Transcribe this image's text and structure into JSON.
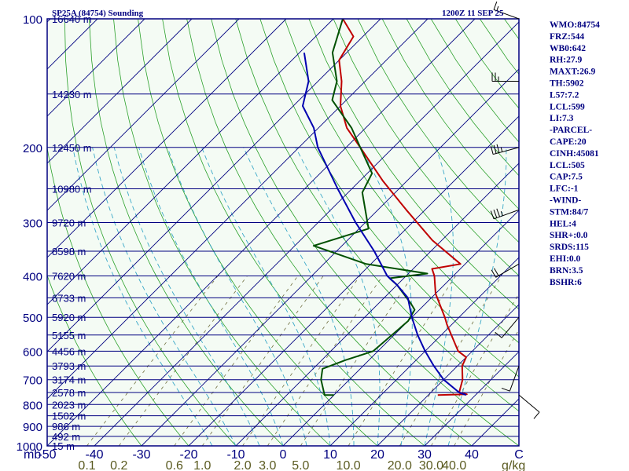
{
  "header": {
    "station": "SP25A (84754) Sounding",
    "time": "1200Z 11 SEP 25"
  },
  "indices": [
    "WMO:84754",
    "FRZ:544",
    "WB0:642",
    "RH:27.9",
    "MAXT:26.9",
    "TH:5902",
    "L57:7.2",
    "LCL:599",
    "LI:7.3",
    "-PARCEL-",
    "CAPE:20",
    "CINH:45081",
    "LCL:505",
    "CAP:7.5",
    "LFC:-1",
    "-WIND-",
    "STM:84/7",
    "HEL:4",
    "SHR+:0.0",
    "SRDS:115",
    "EHI:0.0",
    "BRN:3.5",
    "BSHR:6"
  ],
  "colors": {
    "background": "#f4fbf4",
    "frame": "#000080",
    "isobar": "#000080",
    "isotherm": "#000080",
    "dry_adiabat": "#2aa02a",
    "moist_adiabat": "#3aa8c8",
    "mixing_ratio": "#707040",
    "temperature": "#c00000",
    "dewpoint": "#005000",
    "parcel": "#0000b0",
    "wind": "#000000",
    "label_text": "#000080",
    "axis_text": "#5a5a20"
  },
  "chart_data": {
    "type": "skew-t",
    "yscale": "log",
    "ylim": [
      1000,
      100
    ],
    "xlim": [
      -50,
      50
    ],
    "pressure_ticks": [
      "100",
      "200",
      "300",
      "400",
      "500",
      "600",
      "700",
      "800",
      "900",
      "1000"
    ],
    "temperature_ticks": [
      "-50",
      "-40",
      "-30",
      "-20",
      "-10",
      "0",
      "10",
      "20",
      "30",
      "40",
      "C"
    ],
    "mb_label": "mb",
    "mixing_ratio_ticks": [
      "0.1",
      "0.2",
      "0.6",
      "1.0",
      "2.0",
      "3.0",
      "5.0",
      "10.0",
      "20.0",
      "30.0",
      "40.0"
    ],
    "mixing_ratio_unit": "g/kg",
    "heights": [
      {
        "p": 100,
        "label": "16640 m"
      },
      {
        "p": 150,
        "label": "14230 m"
      },
      {
        "p": 200,
        "label": "12450 m"
      },
      {
        "p": 250,
        "label": "10980 m"
      },
      {
        "p": 300,
        "label": "9720 m"
      },
      {
        "p": 350,
        "label": "8598 m"
      },
      {
        "p": 400,
        "label": "7620 m"
      },
      {
        "p": 450,
        "label": "6733 m"
      },
      {
        "p": 500,
        "label": "5920 m"
      },
      {
        "p": 550,
        "label": "5155 m"
      },
      {
        "p": 600,
        "label": "4456 m"
      },
      {
        "p": 650,
        "label": "3793 m"
      },
      {
        "p": 700,
        "label": "3174 m"
      },
      {
        "p": 750,
        "label": "2578 m"
      },
      {
        "p": 800,
        "label": "2023 m"
      },
      {
        "p": 850,
        "label": "1502 m"
      },
      {
        "p": 900,
        "label": "986 m"
      },
      {
        "p": 950,
        "label": "492 m"
      },
      {
        "p": 1000,
        "label": "15 m"
      }
    ],
    "series": [
      {
        "name": "temperature",
        "points": [
          [
            760,
            22
          ],
          [
            757,
            28
          ],
          [
            750,
            26
          ],
          [
            700,
            24
          ],
          [
            650,
            21
          ],
          [
            620,
            20
          ],
          [
            600,
            17
          ],
          [
            520,
            9
          ],
          [
            500,
            7
          ],
          [
            440,
            0
          ],
          [
            400,
            -4
          ],
          [
            385,
            -6
          ],
          [
            375,
            -1
          ],
          [
            330,
            -12
          ],
          [
            280,
            -24
          ],
          [
            240,
            -35
          ],
          [
            200,
            -47
          ],
          [
            180,
            -54
          ],
          [
            160,
            -60
          ],
          [
            140,
            -65
          ],
          [
            125,
            -70
          ],
          [
            110,
            -72
          ],
          [
            100,
            -78
          ]
        ]
      },
      {
        "name": "dewpoint",
        "points": [
          [
            760,
            0
          ],
          [
            760,
            -2
          ],
          [
            700,
            -6
          ],
          [
            660,
            -8
          ],
          [
            630,
            -5
          ],
          [
            600,
            -1
          ],
          [
            510,
            0
          ],
          [
            480,
            -1
          ],
          [
            465,
            -3
          ],
          [
            420,
            -10
          ],
          [
            405,
            -13
          ],
          [
            395,
            -6
          ],
          [
            375,
            -21
          ],
          [
            340,
            -36
          ],
          [
            310,
            -28
          ],
          [
            255,
            -37
          ],
          [
            230,
            -39
          ],
          [
            200,
            -47
          ],
          [
            180,
            -53
          ],
          [
            155,
            -63
          ],
          [
            140,
            -66
          ],
          [
            120,
            -73
          ],
          [
            100,
            -78
          ]
        ]
      },
      {
        "name": "parcel",
        "points": [
          [
            760,
            28
          ],
          [
            750,
            26
          ],
          [
            700,
            20
          ],
          [
            650,
            15
          ],
          [
            600,
            10
          ],
          [
            550,
            5
          ],
          [
            500,
            0
          ],
          [
            450,
            -5
          ],
          [
            420,
            -10
          ],
          [
            400,
            -14
          ],
          [
            350,
            -22
          ],
          [
            300,
            -32
          ],
          [
            250,
            -43
          ],
          [
            200,
            -56
          ],
          [
            180,
            -61
          ],
          [
            160,
            -68
          ],
          [
            140,
            -72
          ],
          [
            120,
            -79
          ]
        ]
      }
    ],
    "winds": [
      {
        "p": 100,
        "direction": 290,
        "speed": 15
      },
      {
        "p": 140,
        "direction": 270,
        "speed": 25
      },
      {
        "p": 200,
        "direction": 255,
        "speed": 35
      },
      {
        "p": 280,
        "direction": 250,
        "speed": 35
      },
      {
        "p": 375,
        "direction": 240,
        "speed": 20
      },
      {
        "p": 500,
        "direction": 220,
        "speed": 10
      },
      {
        "p": 650,
        "direction": 200,
        "speed": 10
      },
      {
        "p": 760,
        "direction": 130,
        "speed": 10
      }
    ]
  }
}
